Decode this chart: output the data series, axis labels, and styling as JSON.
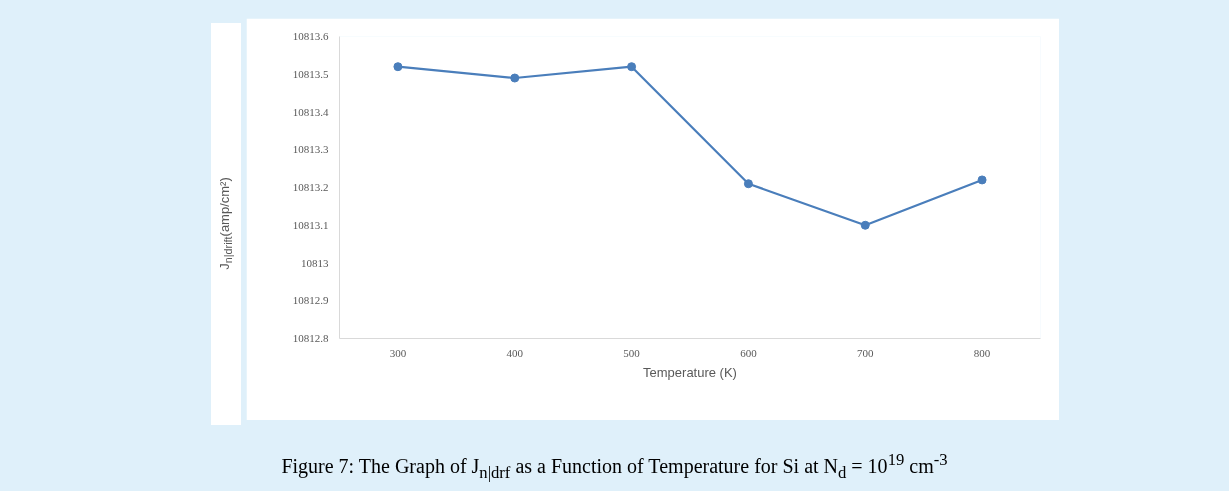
{
  "chart_data": {
    "type": "line",
    "categories": [
      "300",
      "400",
      "500",
      "600",
      "700",
      "800"
    ],
    "series": [
      {
        "color": "#4a7ebb",
        "values": [
          10813.52,
          10813.49,
          10813.52,
          10813.21,
          10813.1,
          10813.22
        ]
      }
    ],
    "xlabel": "Temperature (K)",
    "ylabel": "J$_{n|drift}$(amp/cm²)",
    "ylim": [
      10812.8,
      10813.6
    ],
    "yticks": [
      10812.8,
      10812.9,
      10813,
      10813.1,
      10813.2,
      10813.3,
      10813.4,
      10813.5,
      10813.6
    ],
    "grid": false,
    "marker": "circle",
    "line_style": "solid",
    "annotations": [
      "Figure 7: The Graph of J$_{n|drf}$ as a Function of Temperature for Si at N$_{d}$ = 10$^{19}$ cm$^{-3}$"
    ]
  }
}
